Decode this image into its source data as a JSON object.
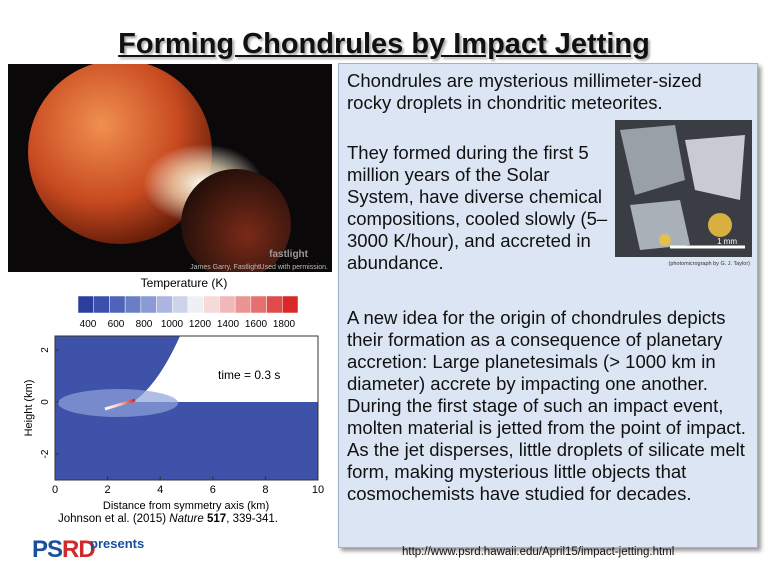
{
  "header": {
    "title": "Forming Chondrules by Impact Jetting"
  },
  "photo": {
    "watermark": "fastlight",
    "credit": "James Garry, Fastlight",
    "permission": "Used with permission."
  },
  "figure": {
    "colorbar_title": "Temperature (K)",
    "colorbar_ticks": [
      "400",
      "600",
      "800",
      "1000",
      "1200",
      "1400",
      "1600",
      "1800"
    ],
    "y_label": "Height (km)",
    "y_ticks": [
      "2",
      "0",
      "-2"
    ],
    "x_label": "Distance from symmetry axis (km)",
    "x_ticks": [
      "0",
      "2",
      "4",
      "6",
      "8",
      "10"
    ],
    "annotation": "time = 0.3 s",
    "caption": [
      "Johnson et al. (2015) ",
      "Nature",
      " 517",
      ", 339-341."
    ]
  },
  "panel": {
    "paragraphs": [
      "Chondrules are mysterious millimeter-sized rocky droplets in chondritic meteorites.",
      "They formed during the first 5 million years of the Solar System, have diverse chemical compositions, cooled slowly (5–3000 K/hour), and accreted in abundance.",
      "A new idea for the origin of chondrules depicts their formation as a consequence of planetary accretion: Large planetesimals (> 1000 km in diameter) accrete by impacting one another. During the first stage of such an impact event, molten material is jetted from the point of impact. As the jet disperses, little droplets of silicate melt form, making mysterious little objects that cosmochemists have studied for decades."
    ],
    "micrograph_scale": "1 mm",
    "micrograph_credit": "(photomicrograph by G. J. Taylor)"
  },
  "footer": {
    "logo": [
      "PS",
      "RD"
    ],
    "logo_tagline": "presents",
    "url": "http://www.psrd.hawaii.edu/April15/impact-jetting.html"
  }
}
